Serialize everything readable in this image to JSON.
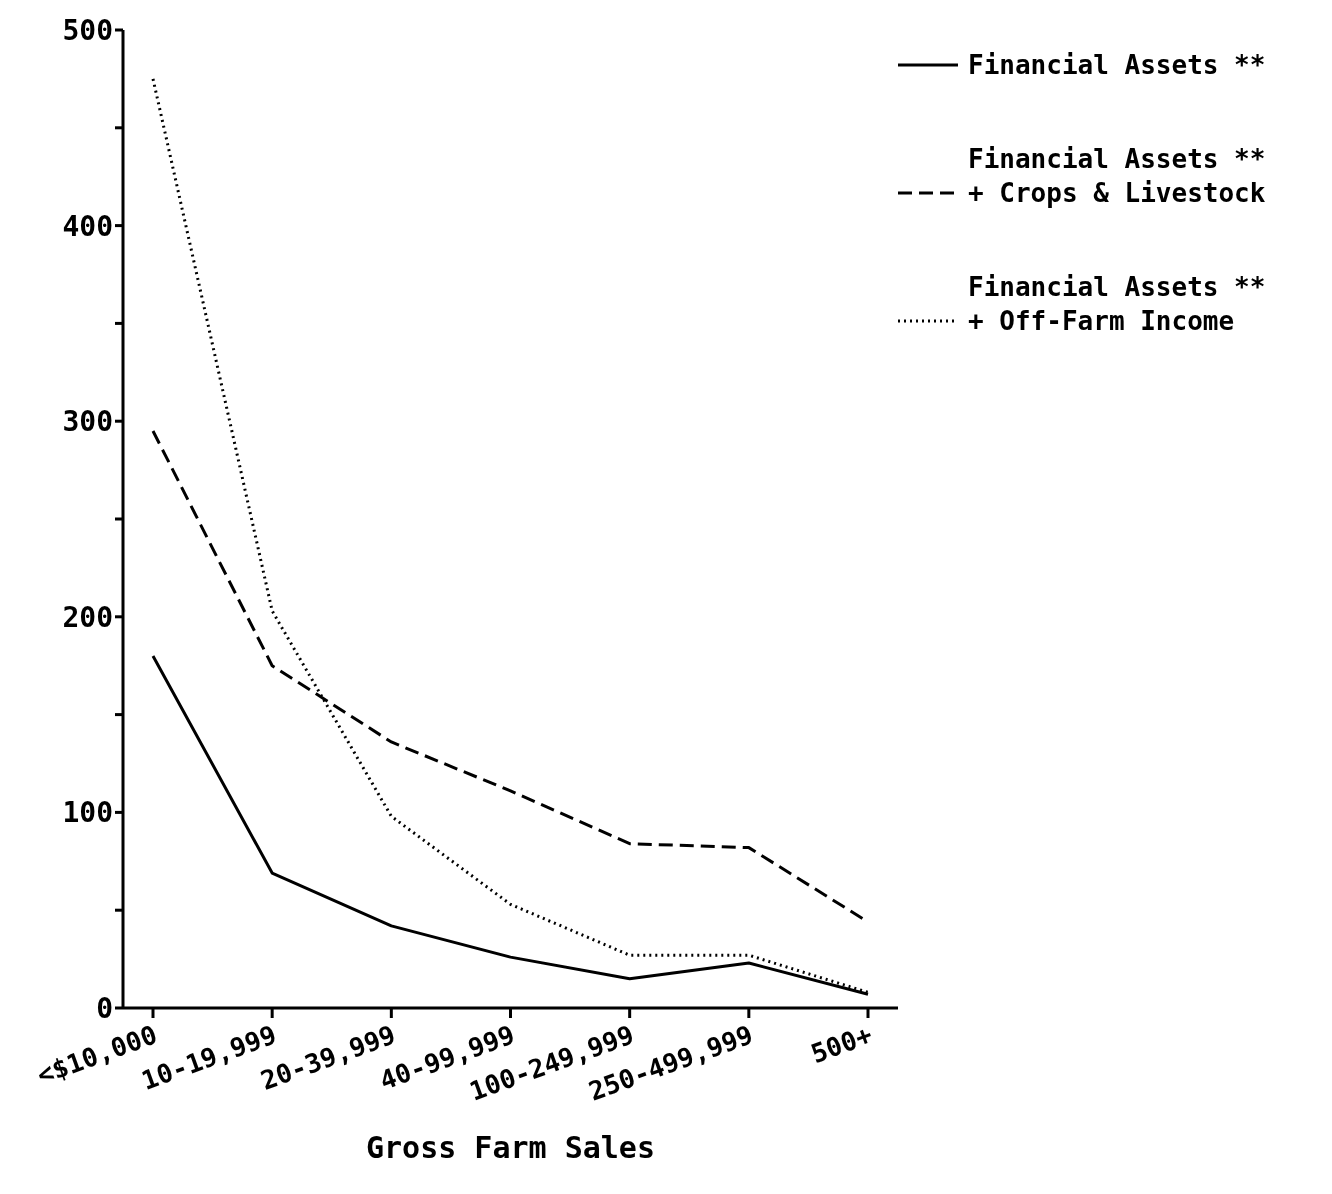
{
  "chart_data": {
    "type": "line",
    "xlabel": "Gross Farm Sales",
    "categories": [
      "<$10,000",
      "10-19,999",
      "20-39,999",
      "40-99,999",
      "100-249,999",
      "250-499,999",
      "500+"
    ],
    "series": [
      {
        "name": "Financial Assets **",
        "color": "#000000",
        "line_style": "solid",
        "values": [
          180,
          69,
          42,
          26,
          15,
          23,
          7
        ]
      },
      {
        "name": "Financial Assets **\n+ Crops & Livestock",
        "color": "#000000",
        "line_style": "dashed",
        "values": [
          295,
          175,
          136,
          111,
          84,
          82,
          44
        ]
      },
      {
        "name": "Financial Assets **\n+ Off-Farm Income",
        "color": "#000000",
        "line_style": "dotted",
        "values": [
          475,
          203,
          98,
          53,
          27,
          27,
          8
        ]
      }
    ],
    "ylim": [
      0,
      500
    ],
    "yticks": [
      0,
      {
        "value": 50,
        "label": null
      },
      100,
      {
        "value": 150,
        "label": null
      },
      200,
      {
        "value": 250,
        "label": null
      },
      300,
      {
        "value": 350,
        "label": null
      },
      400,
      {
        "value": 450,
        "label": null
      },
      500
    ],
    "grid": false,
    "legend": "top right",
    "marker": "none"
  }
}
